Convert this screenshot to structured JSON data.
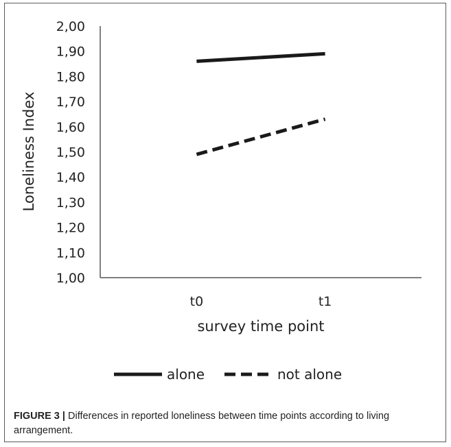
{
  "chart_data": {
    "type": "line",
    "categories": [
      "t0",
      "t1"
    ],
    "series": [
      {
        "name": "alone",
        "values": [
          1.86,
          1.89
        ],
        "style": "solid"
      },
      {
        "name": "not alone",
        "values": [
          1.49,
          1.63
        ],
        "style": "dashed"
      }
    ],
    "ylabel": "Loneliness Index",
    "xlabel": "survey time point",
    "ylim": [
      1.0,
      2.0
    ],
    "yticks": [
      "1,00",
      "1,10",
      "1,20",
      "1,30",
      "1,40",
      "1,50",
      "1,60",
      "1,70",
      "1,80",
      "1,90",
      "2,00"
    ],
    "grid": false,
    "legend": "bottom",
    "line_color": "#1a1a1a"
  },
  "caption": {
    "figure_label": "FIGURE 3 |",
    "text": " Differences in reported loneliness between time points according to living arrangement."
  }
}
